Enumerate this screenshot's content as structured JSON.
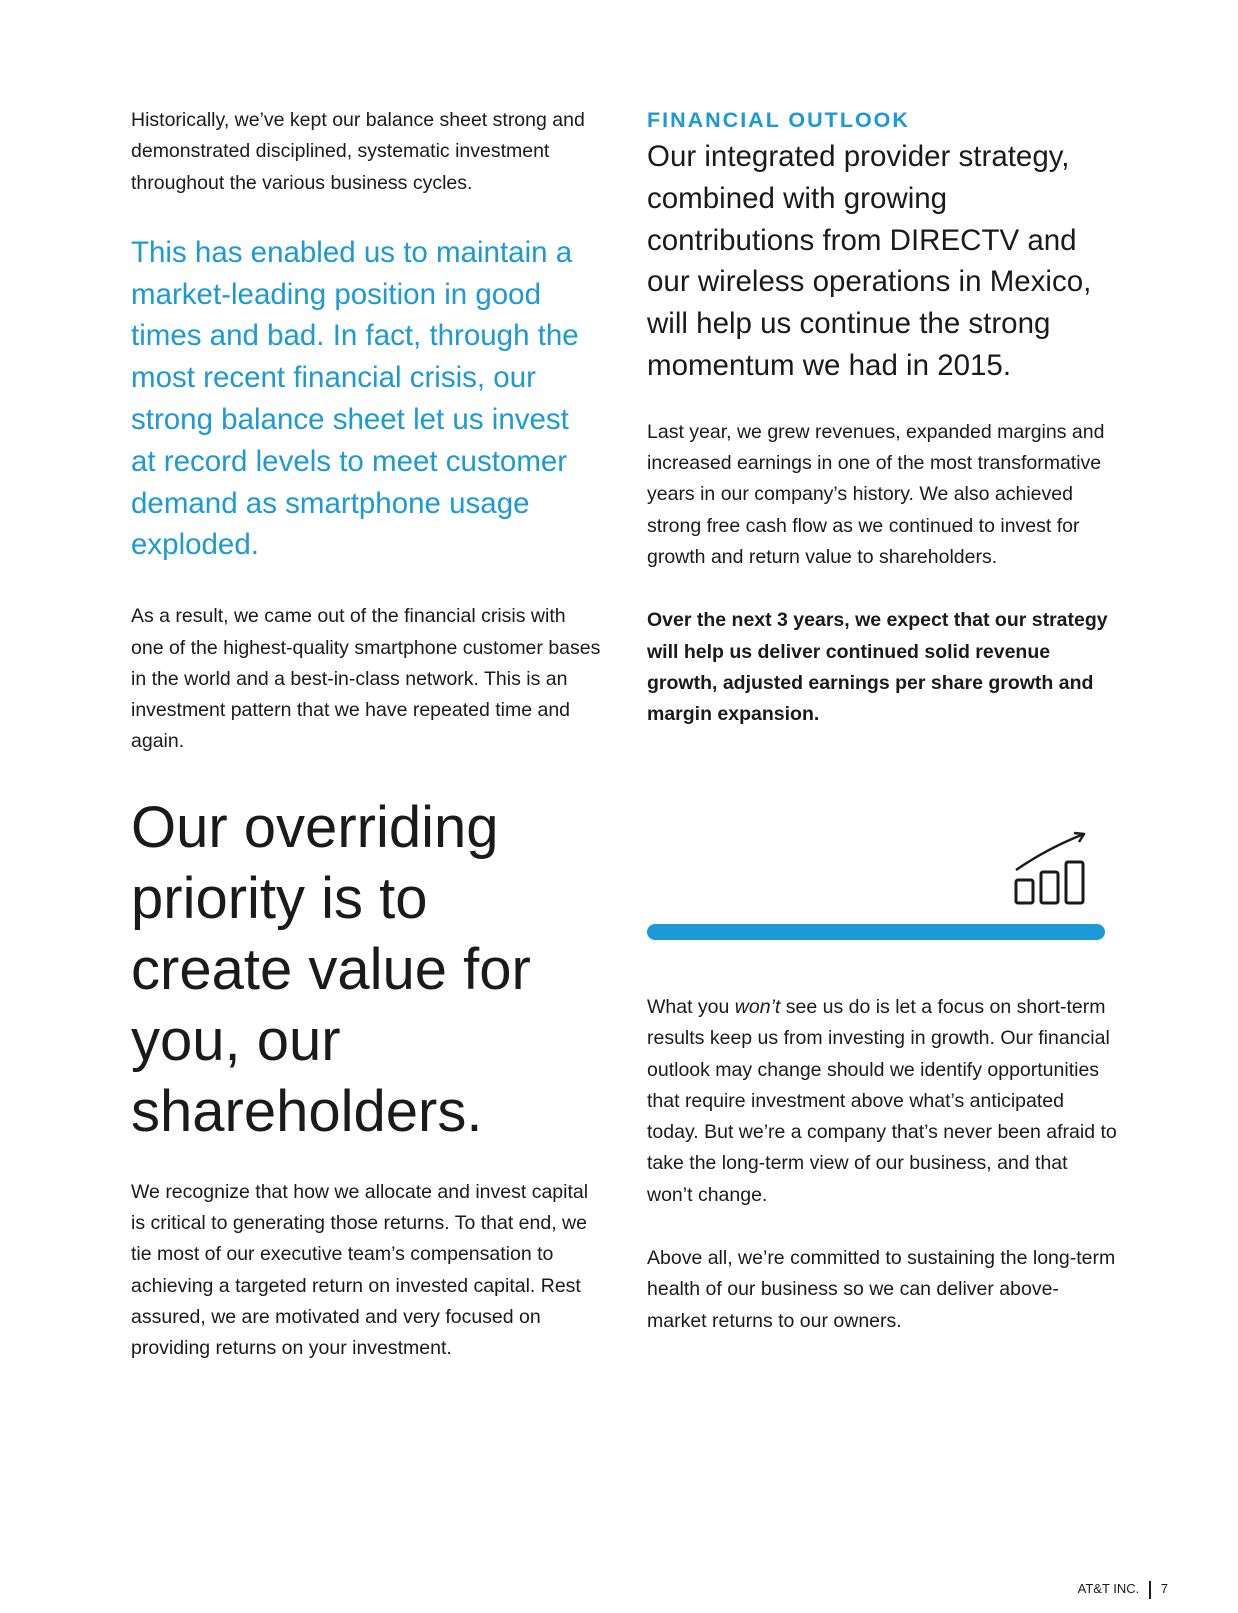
{
  "left_column": {
    "intro_paragraph": "Historically, we’ve kept our balance sheet strong and demonstrated disciplined, systematic investment throughout the various business cycles.",
    "pull_quote": "This has enabled us to maintain a market-leading position in good times and bad. In fact, through the most recent financial crisis, our strong balance sheet let us invest at record levels to meet customer demand as smartphone usage exploded.",
    "paragraph_2": "As a result, we came out of the financial crisis with one of the highest-quality smartphone customer bases in the world and a best-in-class network. This is an investment pattern that we have repeated time and again.",
    "big_quote": "Our overriding priority is to create value for you, our shareholders.",
    "paragraph_3": "We recognize that how we allocate and invest capital is critical to generating those returns. To that end, we tie most of our executive team’s compensation to achieving a targeted return on invested capital. Rest assured, we are motivated and very focused on providing returns on your investment."
  },
  "right_column": {
    "eyebrow": "FINANCIAL OUTLOOK",
    "subhead": "Our integrated provider strategy, combined with growing contributions from DIRECTV and our wireless operations in Mexico, will help us continue the strong momentum we had in 2015.",
    "paragraph_1": "Last year, we grew revenues, expanded margins and increased earnings in one of the most transformative years in our company’s history. We also achieved strong free cash flow as we continued to invest for growth and return value to shareholders.",
    "bold_paragraph": "Over the next 3 years, we expect that our strategy will help us deliver continued solid revenue growth, adjusted earnings per share growth and margin expansion.",
    "icon": "growth-chart-icon",
    "paragraph_2_prefix": "What you ",
    "paragraph_2_emphasis": "won’t",
    "paragraph_2_rest": " see us do is let a focus on short-term results keep us from investing in growth. Our financial outlook may change should we identify opportunities that require investment above what’s anticipated today. But we’re a company that’s never been afraid to take the long-term view of our business, and that won’t change.",
    "paragraph_3": "Above all, we’re committed to sustaining the long-term health of our business so we can deliver above-market returns to our owners."
  },
  "footer": {
    "company": "AT&T INC.",
    "page_number": "7"
  },
  "colors": {
    "accent_blue": "#1b9ad6",
    "text": "#1a1a1a"
  }
}
